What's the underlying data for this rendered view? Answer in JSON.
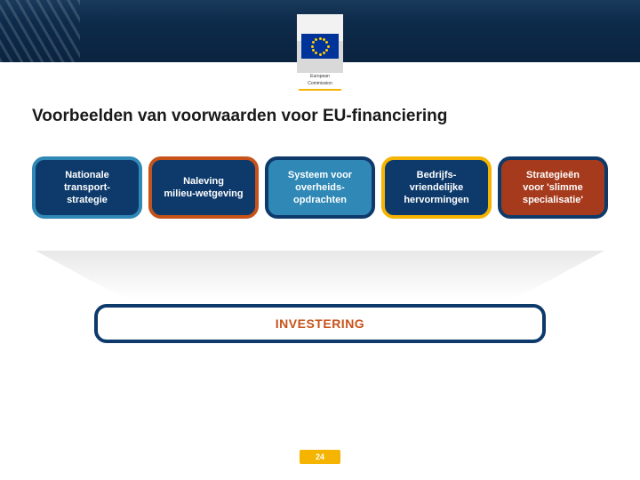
{
  "header": {
    "ec_label_line1": "European",
    "ec_label_line2": "Commission",
    "band_color": "#0d2b4a",
    "accent_color": "#f5b400"
  },
  "title": "Voorbeelden van voorwaarden voor EU-financiering",
  "boxes": [
    {
      "label": "Nationale transport-strategie",
      "fill": "#0d3a6b",
      "border": "#2f88b5"
    },
    {
      "label": "Naleving milieu-wetgeving",
      "fill": "#0d3a6b",
      "border": "#c7521a"
    },
    {
      "label": "Systeem voor overheids-opdrachten",
      "fill": "#2f88b5",
      "border": "#0d3a6b"
    },
    {
      "label": "Bedrijfs-vriendelijke hervormingen",
      "fill": "#0d3a6b",
      "border": "#f5b400"
    },
    {
      "label": "Strategieën voor 'slimme specialisatie'",
      "fill": "#a63a1c",
      "border": "#0d3a6b"
    }
  ],
  "funnel": {
    "fill_top": "#e8e8e8",
    "fill_bottom": "#ffffff"
  },
  "investering": {
    "label": "INVESTERING",
    "border": "#0d3a6b",
    "text_color": "#c7521a"
  },
  "page_number": "24",
  "page_number_bg": "#f5b400"
}
